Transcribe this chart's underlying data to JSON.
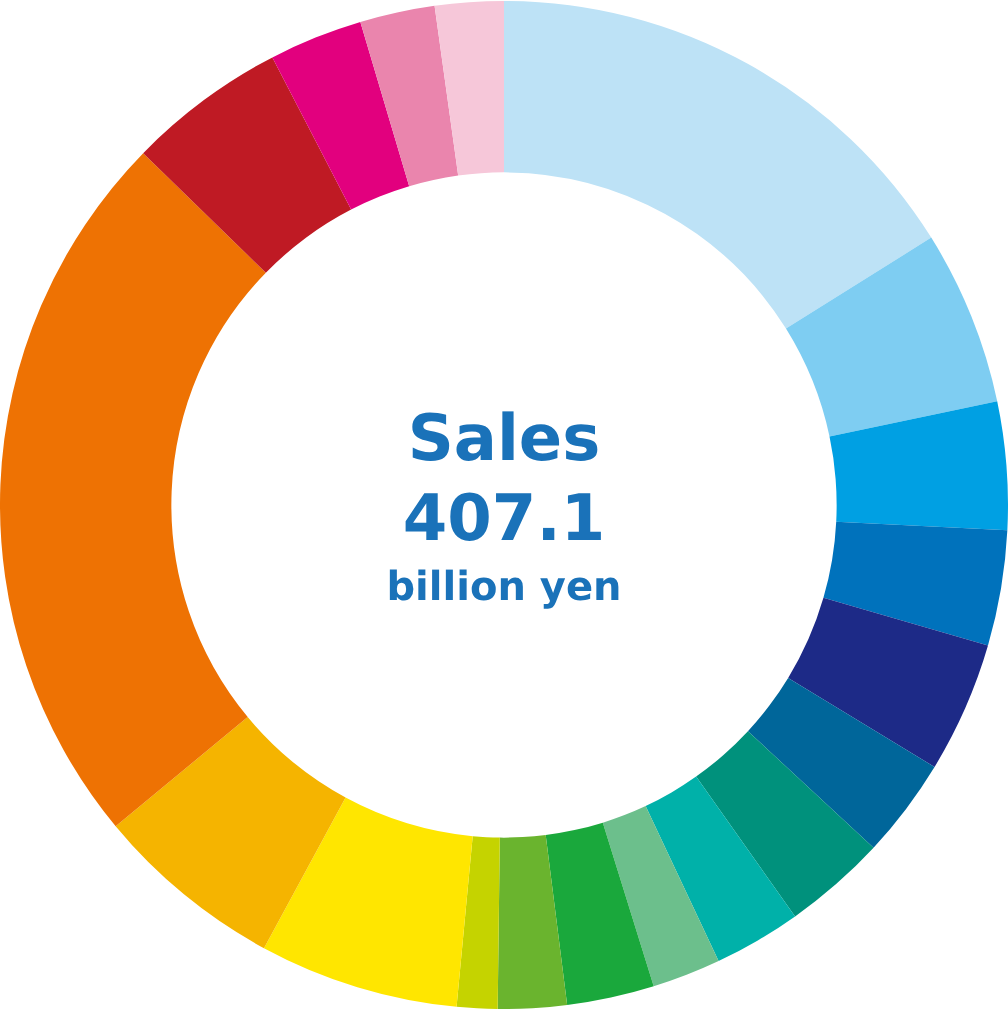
{
  "chart_data": {
    "type": "donut",
    "title": "Sales",
    "subtitle": "407.1",
    "annotations": [
      "billion yen"
    ],
    "categories": [
      null,
      null,
      null,
      null,
      null,
      null,
      null,
      null,
      null,
      null,
      null,
      null,
      null,
      null,
      null,
      null,
      null,
      null,
      null
    ],
    "values": [
      16.1,
      5.6,
      4.1,
      3.7,
      4.2,
      3.2,
      3.3,
      2.8,
      2.2,
      2.8,
      2.2,
      1.3,
      6.4,
      6.1,
      23.3,
      5.1,
      3.0,
      2.4,
      2.2
    ],
    "colors": [
      "#bde2f6",
      "#7ecdf2",
      "#00a0e3",
      "#0072bc",
      "#1d2a87",
      "#00669a",
      "#00917c",
      "#00b1a9",
      "#6cbf8c",
      "#1aa83c",
      "#6ab42e",
      "#c5d300",
      "#ffe600",
      "#f5b400",
      "#ee7203",
      "#bf1a24",
      "#e2007e",
      "#ea85ad",
      "#f6c7d9"
    ],
    "legend": false
  }
}
